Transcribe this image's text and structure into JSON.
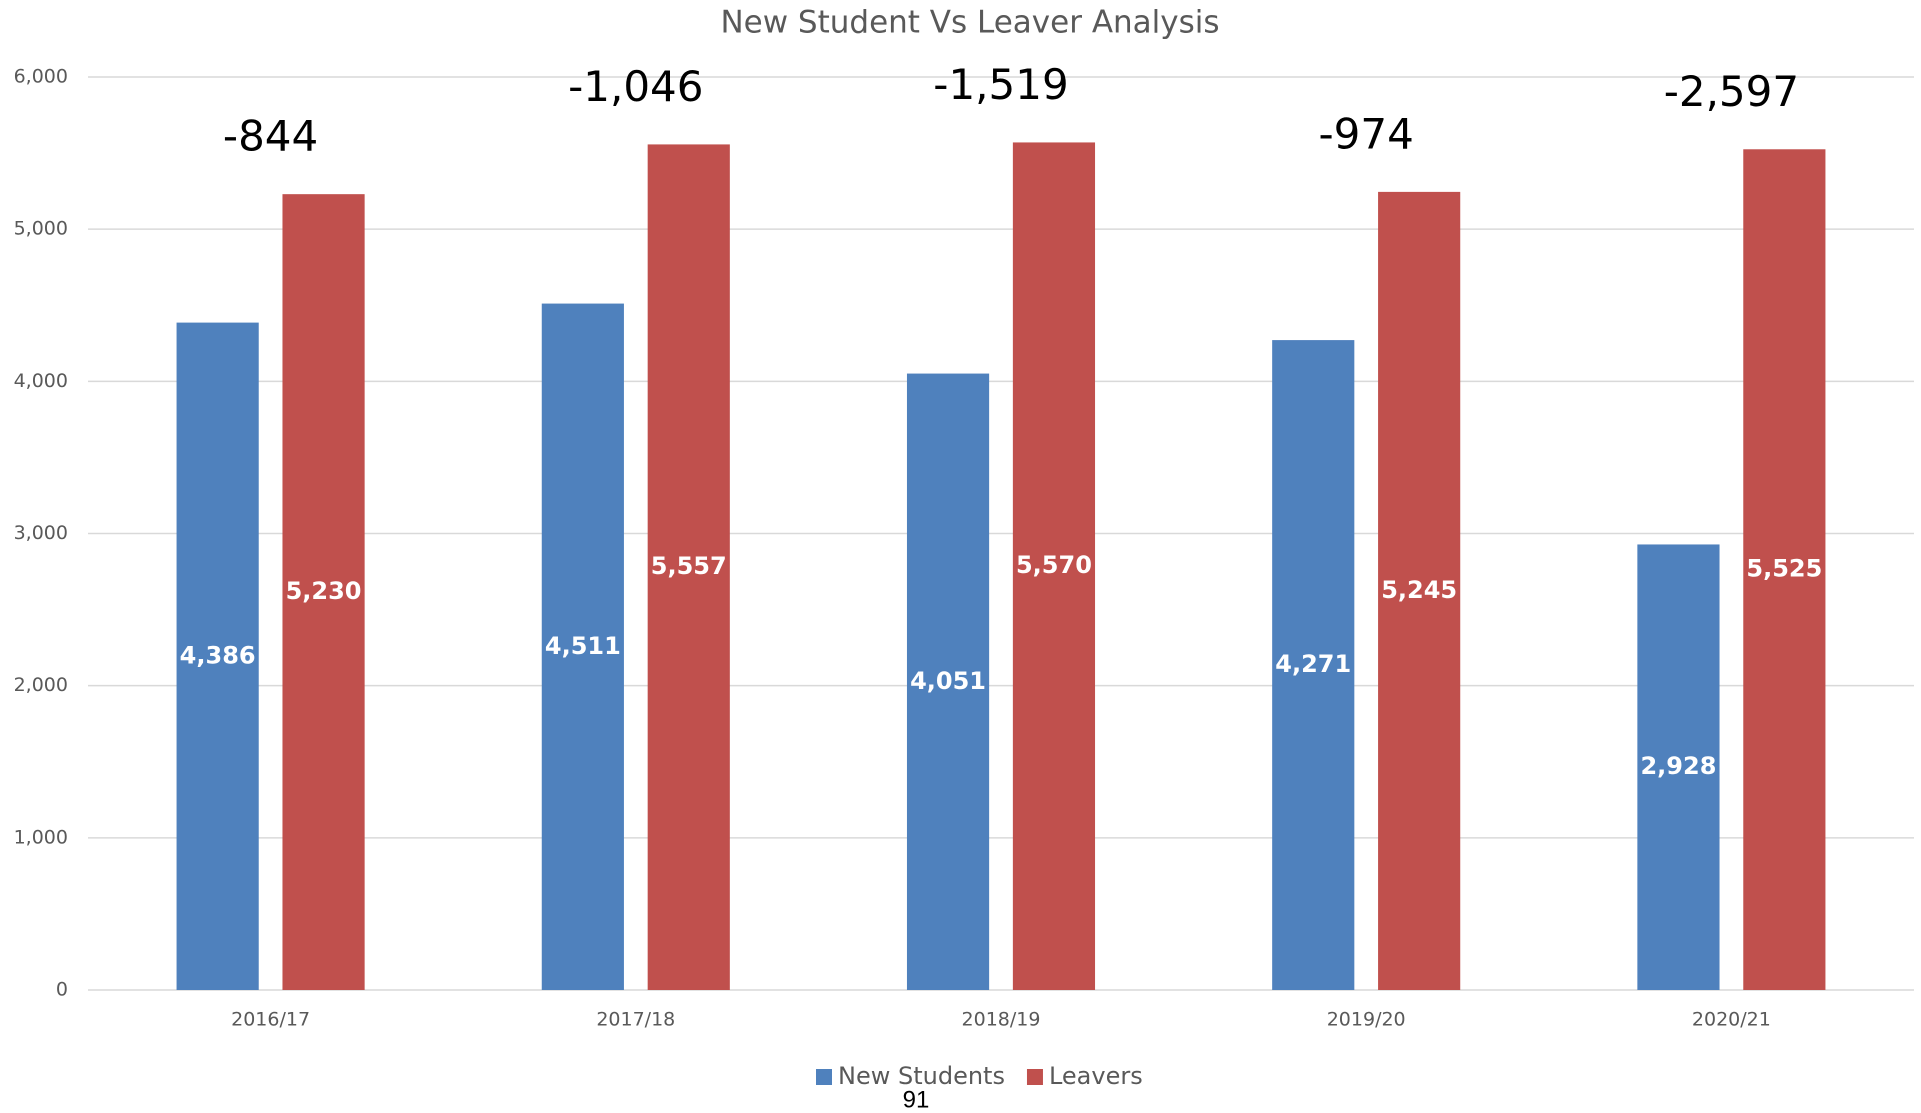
{
  "chart_data": {
    "type": "bar",
    "title": "New Student Vs Leaver Analysis",
    "categories": [
      "2016/17",
      "2017/18",
      "2018/19",
      "2019/20",
      "2020/21"
    ],
    "series": [
      {
        "name": "New Students",
        "color": "#4f81bd",
        "values": [
          4386,
          4511,
          4051,
          4271,
          2928
        ],
        "value_labels": [
          "4,386",
          "4,511",
          "4,051",
          "4,271",
          "2,928"
        ]
      },
      {
        "name": "Leavers",
        "color": "#c0504d",
        "values": [
          5230,
          5557,
          5570,
          5245,
          5525
        ],
        "value_labels": [
          "5,230",
          "5,557",
          "5,570",
          "5,245",
          "5,525"
        ]
      }
    ],
    "annotations": [
      "-844",
      "-1,046",
      "-1,519",
      "-974",
      "-2,597"
    ],
    "ylim": [
      0,
      6000
    ],
    "yticks": [
      0,
      {
        "value": 1000,
        "label": "1,000"
      },
      {
        "value": 2000,
        "label": "2,000"
      },
      {
        "value": 3000,
        "label": "3,000"
      },
      {
        "value": 4000,
        "label": "4,000"
      },
      {
        "value": 5000,
        "label": "5,000"
      },
      {
        "value": 6000,
        "label": "6,000"
      }
    ],
    "grid": true,
    "legend": "bottom"
  },
  "page_number": "91"
}
